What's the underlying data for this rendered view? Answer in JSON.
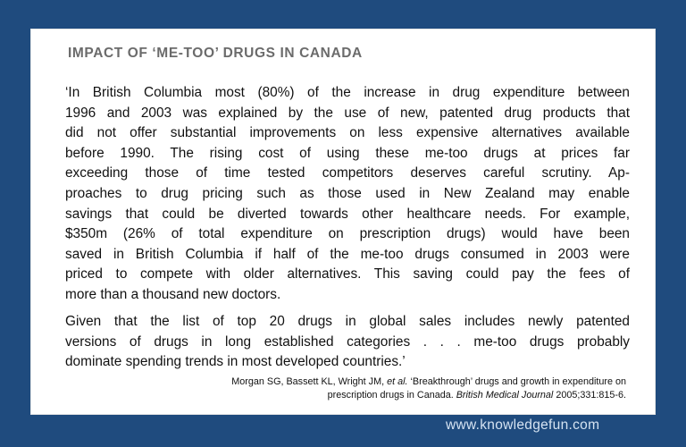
{
  "box": {
    "title": "IMPACT OF ‘ME-TOO’ DRUGS IN CANADA",
    "paragraph1_lines": [
      "‘In British Columbia most (80%) of the increase in drug expenditure between",
      "1996 and 2003 was explained by the use of new, patented drug products that",
      "did not offer substantial improvements on less expensive alternatives available",
      "before 1990. The rising cost of using these me-too drugs at prices far",
      "exceeding those of time tested competitors deserves careful scrutiny. Ap-",
      "proaches to drug pricing such as those used in New Zealand may enable",
      "savings that could be diverted towards other healthcare needs. For example,",
      "$350m (26% of total expenditure on prescription drugs) would have been",
      "saved in British Columbia if half of the me-too drugs consumed in 2003 were",
      "priced to compete with older alternatives. This saving could pay the fees of",
      "more than a thousand new doctors."
    ],
    "paragraph2_lines": [
      "Given that the list of top 20 drugs in global sales includes newly patented",
      "versions of drugs in long established categories . . . me-too drugs probably",
      "dominate spending trends in most developed countries.’"
    ],
    "citation": {
      "authors": "Morgan SG, Bassett KL, Wright JM,",
      "et_al": "et al.",
      "line1_rest": "‘Breakthrough’ drugs and growth in expenditure on",
      "line2_start": "prescription drugs in Canada.",
      "journal": "British Medical Journal",
      "volume": "2005;331:815-6."
    }
  },
  "watermark": "www.knowledgefun.com",
  "colors": {
    "background": "#1f4b7e",
    "card": "#ffffff",
    "title": "#6b6b6b",
    "watermark": "#d5e3f2"
  }
}
